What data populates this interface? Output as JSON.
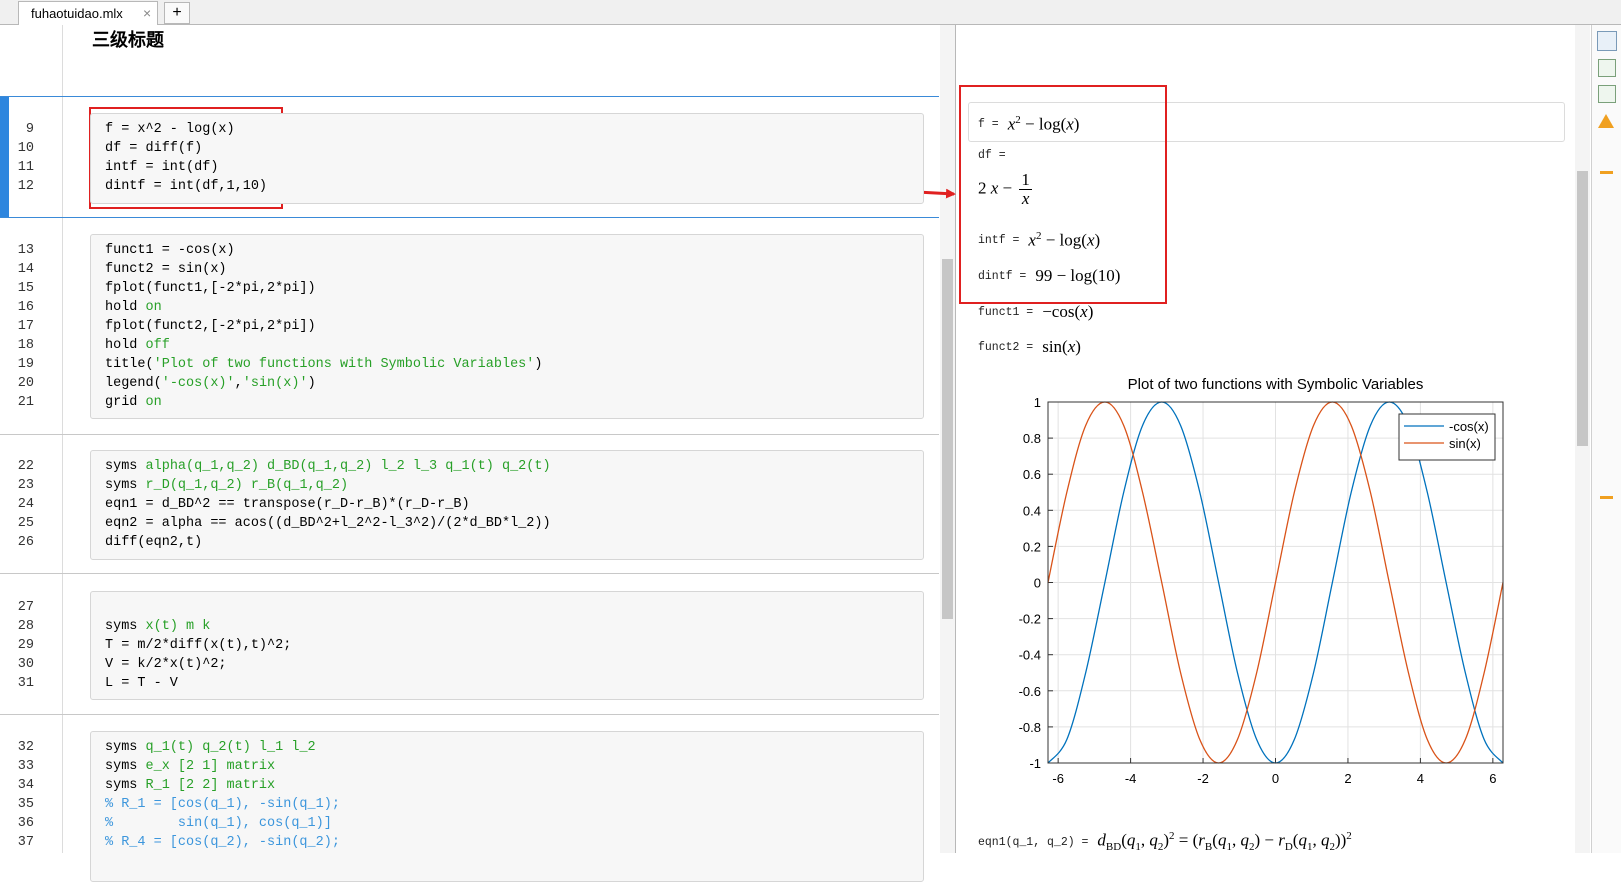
{
  "editor": {
    "tab": "fuhaotuidao.mlx",
    "tab_close": "×",
    "new_tab": "+",
    "heading": "三级标题",
    "blocks": [
      {
        "lines": [
          {
            "n": 9,
            "code": [
              {
                "text": "f = x^2 - log(x)"
              }
            ]
          },
          {
            "n": 10,
            "code": [
              {
                "text": "df = diff(f)"
              }
            ]
          },
          {
            "n": 11,
            "code": [
              {
                "text": "intf = int(df)"
              }
            ]
          },
          {
            "n": 12,
            "code": [
              {
                "text": "dintf = int(df,1,10)"
              }
            ]
          }
        ]
      },
      {
        "lines": [
          {
            "n": 13,
            "code": [
              {
                "text": "funct1 = -cos(x)"
              }
            ]
          },
          {
            "n": 14,
            "code": [
              {
                "text": "funct2 = sin(x)"
              }
            ]
          },
          {
            "n": 15,
            "code": [
              {
                "text": "fplot(funct1,[-2*pi,2*pi])"
              }
            ]
          },
          {
            "n": 16,
            "code": [
              {
                "text": "hold "
              },
              {
                "text": "on",
                "color": "#28a028"
              }
            ]
          },
          {
            "n": 17,
            "code": [
              {
                "text": "fplot(funct2,[-2*pi,2*pi])"
              }
            ]
          },
          {
            "n": 18,
            "code": [
              {
                "text": "hold "
              },
              {
                "text": "off",
                "color": "#28a028"
              }
            ]
          },
          {
            "n": 19,
            "code": [
              {
                "text": "title("
              },
              {
                "text": "'Plot of two functions with Symbolic Variables'",
                "color": "#28a028"
              },
              {
                "text": ")"
              }
            ]
          },
          {
            "n": 20,
            "code": [
              {
                "text": "legend("
              },
              {
                "text": "'-cos(x)'",
                "color": "#28a028"
              },
              {
                "text": ","
              },
              {
                "text": "'sin(x)'",
                "color": "#28a028"
              },
              {
                "text": ")"
              }
            ]
          },
          {
            "n": 21,
            "code": [
              {
                "text": "grid "
              },
              {
                "text": "on",
                "color": "#28a028"
              }
            ]
          }
        ]
      },
      {
        "lines": [
          {
            "n": 22,
            "code": [
              {
                "text": "syms "
              },
              {
                "text": "alpha(q_1,q_2) d_BD(q_1,q_2) l_2 l_3 q_1(t) q_2(t)",
                "color": "#28a028"
              }
            ]
          },
          {
            "n": 23,
            "code": [
              {
                "text": "syms "
              },
              {
                "text": "r_D(q_1,q_2) r_B(q_1,q_2)",
                "color": "#28a028"
              }
            ]
          },
          {
            "n": 24,
            "code": [
              {
                "text": "eqn1 = d_BD^2 == transpose(r_D-r_B)*(r_D-r_B)"
              }
            ]
          },
          {
            "n": 25,
            "code": [
              {
                "text": "eqn2 = alpha == acos((d_BD^2+l_2^2-l_3^2)/(2*d_BD*l_2))"
              }
            ]
          },
          {
            "n": 26,
            "code": [
              {
                "text": "diff(eqn2,t)"
              }
            ]
          }
        ]
      },
      {
        "lines": [
          {
            "n": 27,
            "code": []
          },
          {
            "n": 28,
            "code": [
              {
                "text": "syms "
              },
              {
                "text": "x(t) m k",
                "color": "#28a028"
              }
            ]
          },
          {
            "n": 29,
            "code": [
              {
                "text": "T = m/2*diff(x(t),t)^2;"
              }
            ]
          },
          {
            "n": 30,
            "code": [
              {
                "text": "V = k/2*x(t)^2;"
              }
            ]
          },
          {
            "n": 31,
            "code": [
              {
                "text": "L = T - V"
              }
            ]
          }
        ]
      },
      {
        "lines": [
          {
            "n": 32,
            "code": [
              {
                "text": "syms "
              },
              {
                "text": "q_1(t) q_2(t) l_1 l_2",
                "color": "#28a028"
              }
            ]
          },
          {
            "n": 33,
            "code": [
              {
                "text": "syms "
              },
              {
                "text": "e_x [2 1] matrix",
                "color": "#28a028"
              }
            ]
          },
          {
            "n": 34,
            "code": [
              {
                "text": "syms "
              },
              {
                "text": "R_1 [2 2] matrix",
                "color": "#28a028"
              }
            ]
          },
          {
            "n": 35,
            "code": [
              {
                "text": "% R_1 = [cos(q_1), -sin(q_1);",
                "color": "#3c96dc"
              }
            ]
          },
          {
            "n": 36,
            "code": [
              {
                "text": "%        sin(q_1), cos(q_1)]",
                "color": "#3c96dc"
              }
            ]
          },
          {
            "n": 37,
            "code": [
              {
                "text": "% R_4 = [cos(q_2), -sin(q_2);",
                "color": "#3c96dc"
              }
            ]
          }
        ]
      }
    ]
  },
  "output": {
    "items": [
      {
        "label": "f =",
        "expr": [
          {
            "text": "x",
            "italic": true
          },
          {
            "sup": "2"
          },
          {
            "text": " − log("
          },
          {
            "text": "x",
            "italic": true
          },
          {
            "text": ")"
          }
        ]
      },
      {
        "label": "df =",
        "expr": [
          {
            "text": "2 "
          },
          {
            "text": "x",
            "italic": true
          },
          {
            "text": " − "
          },
          {
            "num": "1",
            "den": "x"
          }
        ]
      },
      {
        "label": "intf =",
        "expr": [
          {
            "text": "x",
            "italic": true
          },
          {
            "sup": "2"
          },
          {
            "text": " − log("
          },
          {
            "text": "x",
            "italic": true
          },
          {
            "text": ")"
          }
        ]
      },
      {
        "label": "dintf =",
        "expr": [
          {
            "text": "99 − log(10)"
          }
        ]
      },
      {
        "label": "funct1 =",
        "expr": [
          {
            "text": "−cos("
          },
          {
            "text": "x",
            "italic": true
          },
          {
            "text": ")"
          }
        ]
      },
      {
        "label": "funct2 =",
        "expr": [
          {
            "text": "sin("
          },
          {
            "text": "x",
            "italic": true
          },
          {
            "text": ")"
          }
        ]
      },
      {
        "label": "eqn1(q_1, q_2) =",
        "expr": [
          {
            "text": "d",
            "italic": true
          },
          {
            "sub": "BD"
          },
          {
            "text": "("
          },
          {
            "text": "q",
            "italic": true
          },
          {
            "sub": "1"
          },
          {
            "text": ", "
          },
          {
            "text": "q",
            "italic": true
          },
          {
            "sub": "2"
          },
          {
            "text": ")"
          },
          {
            "sup": "2"
          },
          {
            "text": " = ("
          },
          {
            "text": "r",
            "italic": true
          },
          {
            "sub": "B"
          },
          {
            "text": "("
          },
          {
            "text": "q",
            "italic": true
          },
          {
            "sub": "1"
          },
          {
            "text": ", "
          },
          {
            "text": "q",
            "italic": true
          },
          {
            "sub": "2"
          },
          {
            "text": ") − "
          },
          {
            "text": "r",
            "italic": true
          },
          {
            "sub": "D"
          },
          {
            "text": "("
          },
          {
            "text": "q",
            "italic": true
          },
          {
            "sub": "1"
          },
          {
            "text": ", "
          },
          {
            "text": "q",
            "italic": true
          },
          {
            "sub": "2"
          },
          {
            "text": "))"
          },
          {
            "sup": "2"
          }
        ]
      }
    ]
  },
  "chart_data": {
    "type": "line",
    "title": "Plot of two functions with Symbolic Variables",
    "x": [
      -6.28,
      -5.76,
      -5.24,
      -4.71,
      -4.19,
      -3.67,
      -3.14,
      -2.62,
      -2.09,
      -1.57,
      -1.05,
      -0.52,
      0,
      0.52,
      1.05,
      1.57,
      2.09,
      2.62,
      3.14,
      3.67,
      4.19,
      4.71,
      5.24,
      5.76,
      6.28
    ],
    "series": [
      {
        "name": "-cos(x)",
        "color": "#0072bd",
        "values": [
          -1,
          -0.87,
          -0.5,
          0,
          0.5,
          0.87,
          1,
          0.87,
          0.5,
          0,
          -0.5,
          -0.87,
          -1,
          -0.87,
          -0.5,
          0,
          0.5,
          0.87,
          1,
          0.87,
          0.5,
          0,
          -0.5,
          -0.87,
          -1
        ]
      },
      {
        "name": "sin(x)",
        "color": "#d95319",
        "values": [
          0,
          0.5,
          0.87,
          1,
          0.87,
          0.5,
          0,
          -0.5,
          -0.87,
          -1,
          -0.87,
          -0.5,
          0,
          0.5,
          0.87,
          1,
          0.87,
          0.5,
          0,
          -0.5,
          -0.87,
          -1,
          -0.87,
          -0.5,
          0
        ]
      }
    ],
    "xlim": [
      -6.28,
      6.28
    ],
    "ylim": [
      -1,
      1
    ],
    "xticks": [
      -6,
      -4,
      -2,
      0,
      2,
      4,
      6
    ],
    "yticks": [
      -1,
      -0.8,
      -0.6,
      -0.4,
      -0.2,
      0,
      0.2,
      0.4,
      0.6,
      0.8,
      1
    ],
    "grid": true,
    "legend": "upper right"
  }
}
